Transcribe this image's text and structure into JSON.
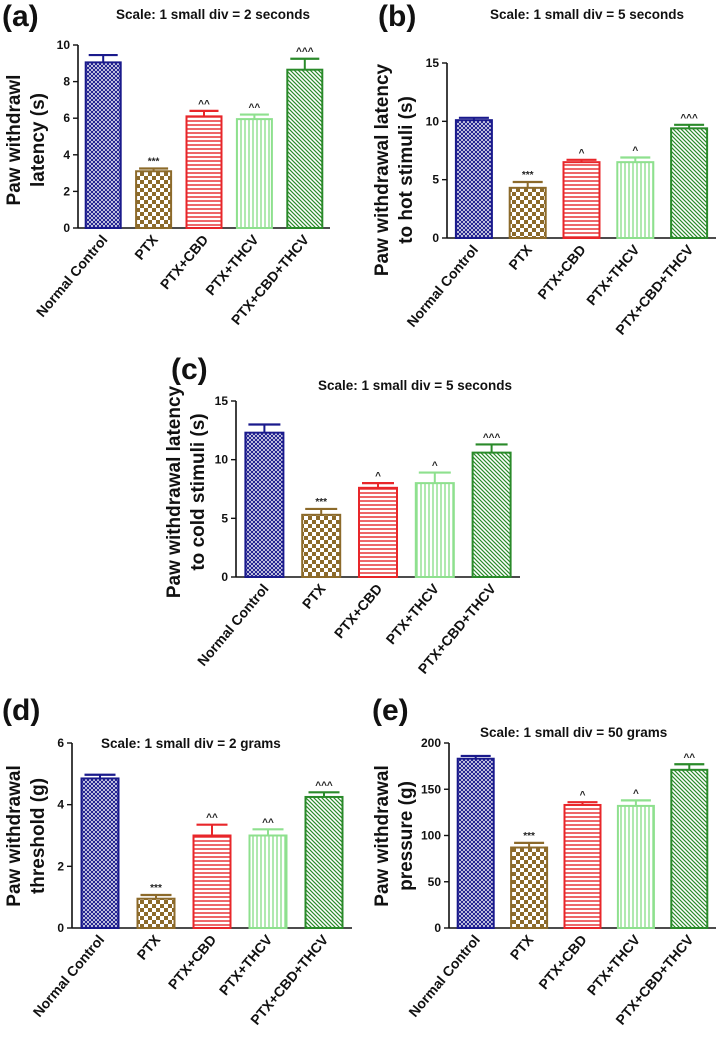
{
  "colors": {
    "normal_control": "#1a1a8c",
    "ptx": "#8c6a2a",
    "ptx_cbd": "#e8262a",
    "ptx_thcv": "#8ee08e",
    "ptx_cbd_thcv": "#2a8a2a"
  },
  "chart_data": [
    {
      "type": "bar",
      "panel": "(a)",
      "note": "Scale: 1 small div = 2 seconds",
      "ylabel_lines": [
        "Paw withdrawl",
        "latency (s)"
      ],
      "categories": [
        "Normal Control",
        "PTX",
        "PTX+CBD",
        "PTX+THCV",
        "PTX+CBD+THCV"
      ],
      "values": [
        9.05,
        3.1,
        6.1,
        5.95,
        8.65
      ],
      "errors": [
        0.4,
        0.15,
        0.3,
        0.25,
        0.6
      ],
      "significance": [
        "",
        "***",
        "^^",
        "^^",
        "^^^"
      ],
      "ylim": [
        0,
        10
      ],
      "yticks": [
        0,
        2,
        4,
        6,
        8,
        10
      ]
    },
    {
      "type": "bar",
      "panel": "(b)",
      "note": "Scale: 1 small div = 5 seconds",
      "ylabel_lines": [
        "Paw withdrawal latency",
        "to hot stimuli (s)"
      ],
      "categories": [
        "Normal Control",
        "PTX",
        "PTX+CBD",
        "PTX+THCV",
        "PTX+CBD+THCV"
      ],
      "values": [
        10.1,
        4.3,
        6.5,
        6.5,
        9.4
      ],
      "errors": [
        0.2,
        0.5,
        0.2,
        0.4,
        0.3
      ],
      "significance": [
        "",
        "***",
        "^",
        "^",
        "^^^"
      ],
      "ylim": [
        0,
        15
      ],
      "yticks": [
        0,
        5,
        10,
        15
      ]
    },
    {
      "type": "bar",
      "panel": "(c)",
      "note": "Scale: 1 small div = 5 seconds",
      "ylabel_lines": [
        "Paw withdrawal latency",
        "to cold stimuli (s)"
      ],
      "categories": [
        "Normal Control",
        "PTX",
        "PTX+CBD",
        "PTX+THCV",
        "PTX+CBD+THCV"
      ],
      "values": [
        12.3,
        5.3,
        7.6,
        8.0,
        10.6
      ],
      "errors": [
        0.7,
        0.5,
        0.4,
        0.9,
        0.7
      ],
      "significance": [
        "",
        "***",
        "^",
        "^",
        "^^^"
      ],
      "ylim": [
        0,
        15
      ],
      "yticks": [
        0,
        5,
        10,
        15
      ]
    },
    {
      "type": "bar",
      "panel": "(d)",
      "note": "Scale: 1 small div = 2 grams",
      "ylabel_lines": [
        "Paw withdrawal",
        "threshold (g)"
      ],
      "categories": [
        "Normal Control",
        "PTX",
        "PTX+CBD",
        "PTX+THCV",
        "PTX+CBD+THCV"
      ],
      "values": [
        4.85,
        0.95,
        3.0,
        3.0,
        4.25
      ],
      "errors": [
        0.12,
        0.12,
        0.35,
        0.2,
        0.15
      ],
      "significance": [
        "",
        "***",
        "^^",
        "^^",
        "^^^"
      ],
      "ylim": [
        0,
        6
      ],
      "yticks": [
        0,
        2,
        4,
        6
      ]
    },
    {
      "type": "bar",
      "panel": "(e)",
      "note": "Scale: 1 small div = 50 grams",
      "ylabel_lines": [
        "Paw withdrawal",
        "pressure (g)"
      ],
      "categories": [
        "Normal Control",
        "PTX",
        "PTX+CBD",
        "PTX+THCV",
        "PTX+CBD+THCV"
      ],
      "values": [
        183,
        87,
        133,
        132,
        171
      ],
      "errors": [
        3,
        5,
        3,
        6,
        6
      ],
      "significance": [
        "",
        "***",
        "^",
        "^",
        "^^"
      ],
      "ylim": [
        0,
        200
      ],
      "yticks": [
        0,
        50,
        100,
        150,
        200
      ]
    }
  ]
}
